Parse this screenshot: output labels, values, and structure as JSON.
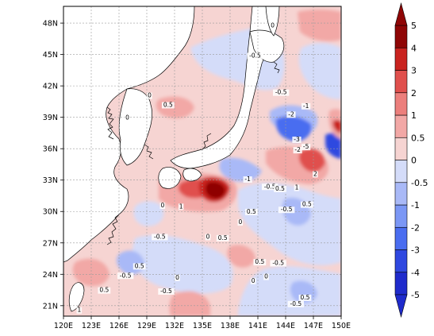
{
  "map": {
    "lon_ticks": [
      "120E",
      "123E",
      "126E",
      "129E",
      "132E",
      "135E",
      "138E",
      "141E",
      "144E",
      "147E",
      "150E"
    ],
    "lat_ticks": [
      "21N",
      "24N",
      "27N",
      "30N",
      "33N",
      "36N",
      "39N",
      "42N",
      "45N",
      "48N"
    ],
    "lon_range": [
      120,
      150
    ],
    "lat_range": [
      20,
      49.6
    ],
    "grid": true
  },
  "colorbar": {
    "levels": [
      "-5",
      "-4",
      "-3",
      "-2",
      "-1",
      "-0.5",
      "0",
      "0.5",
      "1",
      "2",
      "3",
      "4",
      "5"
    ],
    "colors": [
      "#1f2bcc",
      "#2f48e0",
      "#4a6df0",
      "#7b97f5",
      "#a9b9f7",
      "#d4dcf9",
      "#f6d4d2",
      "#f2a8a6",
      "#ec7f7c",
      "#e0504d",
      "#c9231f",
      "#8f0606"
    ],
    "below_color": "#1f2bcc",
    "above_color": "#8f0606"
  },
  "contour_labels": [
    {
      "text": "0",
      "lon": 142.6,
      "lat": 47.6
    },
    {
      "text": "-0.5",
      "lon": 140.7,
      "lat": 44.7
    },
    {
      "text": "0",
      "lon": 129.3,
      "lat": 40.9
    },
    {
      "text": "0.5",
      "lon": 131.3,
      "lat": 40.0
    },
    {
      "text": "-0.5",
      "lon": 143.5,
      "lat": 41.2
    },
    {
      "text": "-1",
      "lon": 146.2,
      "lat": 39.9
    },
    {
      "text": "-2",
      "lon": 144.6,
      "lat": 39.1
    },
    {
      "text": "0",
      "lon": 126.9,
      "lat": 38.8
    },
    {
      "text": "-3",
      "lon": 145.2,
      "lat": 36.7
    },
    {
      "text": "-5",
      "lon": 146.2,
      "lat": 36.0
    },
    {
      "text": "-2",
      "lon": 145.3,
      "lat": 35.7
    },
    {
      "text": "2",
      "lon": 147.2,
      "lat": 33.4
    },
    {
      "text": "1",
      "lon": 145.2,
      "lat": 32.1
    },
    {
      "text": "-1",
      "lon": 139.9,
      "lat": 32.9
    },
    {
      "text": "-0.5",
      "lon": 142.3,
      "lat": 32.2
    },
    {
      "text": "0.5",
      "lon": 143.4,
      "lat": 32.0
    },
    {
      "text": "1",
      "lon": 132.7,
      "lat": 30.3
    },
    {
      "text": "0",
      "lon": 130.7,
      "lat": 30.4
    },
    {
      "text": "-0.5",
      "lon": 144.1,
      "lat": 30.0
    },
    {
      "text": "0.5",
      "lon": 146.3,
      "lat": 30.5
    },
    {
      "text": "0.5",
      "lon": 140.3,
      "lat": 29.8
    },
    {
      "text": "-0.5",
      "lon": 130.4,
      "lat": 27.4
    },
    {
      "text": "0",
      "lon": 135.6,
      "lat": 27.4
    },
    {
      "text": "0.5",
      "lon": 137.2,
      "lat": 27.3
    },
    {
      "text": "0",
      "lon": 139.1,
      "lat": 28.8
    },
    {
      "text": "0.5",
      "lon": 128.2,
      "lat": 24.6
    },
    {
      "text": "-0.5",
      "lon": 126.7,
      "lat": 23.7
    },
    {
      "text": "0.5",
      "lon": 141.2,
      "lat": 25.0
    },
    {
      "text": "-0.5",
      "lon": 143.2,
      "lat": 24.9
    },
    {
      "text": "0",
      "lon": 141.9,
      "lat": 23.6
    },
    {
      "text": "0",
      "lon": 140.5,
      "lat": 23.2
    },
    {
      "text": "0.5",
      "lon": 124.4,
      "lat": 22.3
    },
    {
      "text": "-0.5",
      "lon": 145.1,
      "lat": 21.0
    },
    {
      "text": "0.5",
      "lon": 146.1,
      "lat": 21.6
    },
    {
      "text": "1",
      "lon": 121.7,
      "lat": 20.4
    },
    {
      "text": "0",
      "lon": 132.3,
      "lat": 23.5
    },
    {
      "text": "-0.5",
      "lon": 131.1,
      "lat": 22.2
    }
  ]
}
